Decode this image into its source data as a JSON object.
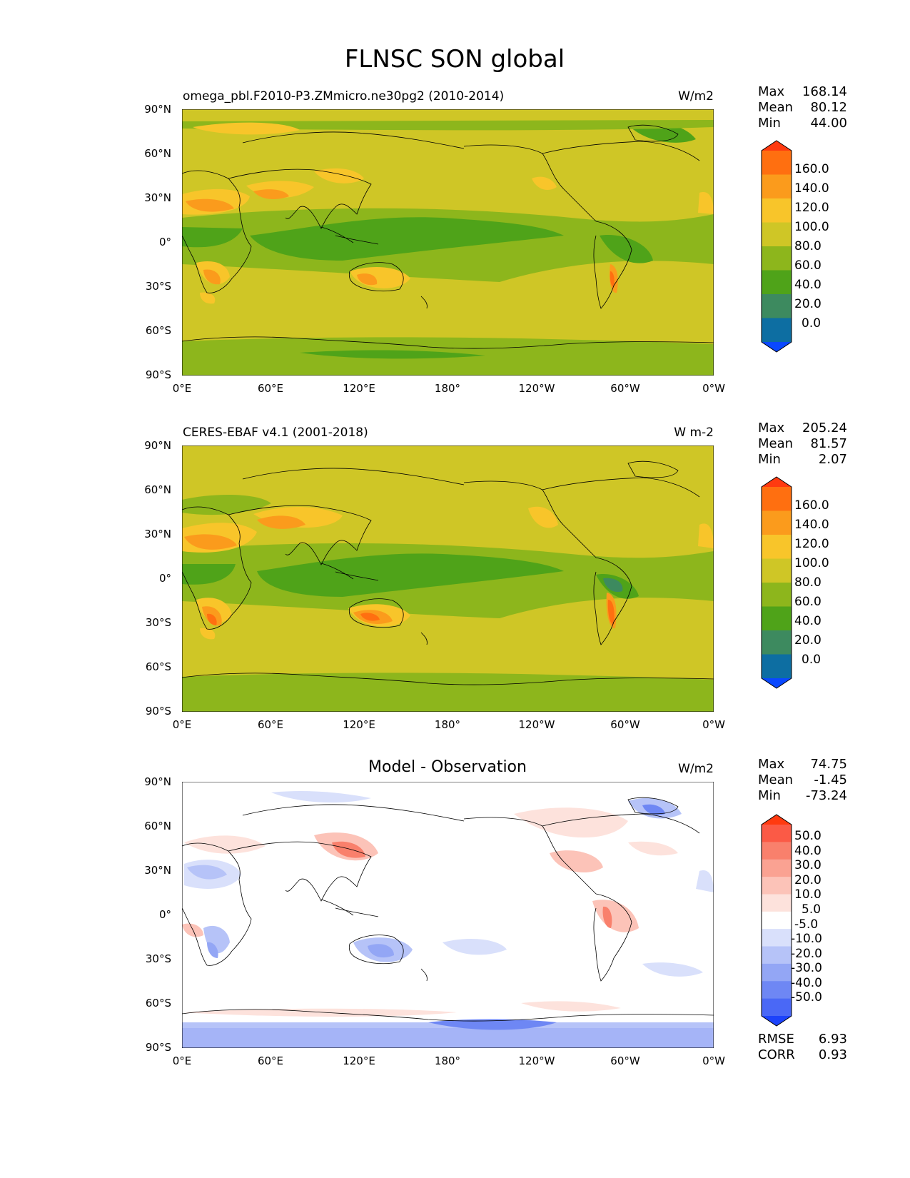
{
  "figure": {
    "title": "FLNSC SON global",
    "x_ticks": [
      "0°E",
      "60°E",
      "120°E",
      "180°",
      "120°W",
      "60°W",
      "0°W"
    ],
    "y_ticks": [
      "90°N",
      "60°N",
      "30°N",
      "0°",
      "30°S",
      "60°S",
      "90°S"
    ]
  },
  "panels": [
    {
      "left_title": "omega_pbl.F2010-P3.ZMmicro.ne30pg2 (2010-2014)",
      "center_title": "",
      "units": "W/m2",
      "stats": [
        {
          "label": "Max",
          "value": "168.14"
        },
        {
          "label": "Mean",
          "value": "80.12"
        },
        {
          "label": "Min",
          "value": "44.00"
        }
      ],
      "colorbar": {
        "labels": [
          "160.0",
          "140.0",
          "120.0",
          "100.0",
          "80.0",
          "60.0",
          "40.0",
          "20.0",
          "0.0"
        ],
        "colors": [
          "#ff3a10",
          "#ff6f10",
          "#fb9b1c",
          "#f8c52a",
          "#cfc626",
          "#8db61c",
          "#4fa319",
          "#3d8a5f",
          "#0d6ea2",
          "#0a48ff"
        ]
      }
    },
    {
      "left_title": "CERES-EBAF v4.1 (2001-2018)",
      "center_title": "",
      "units": "W m-2",
      "stats": [
        {
          "label": "Max",
          "value": "205.24"
        },
        {
          "label": "Mean",
          "value": "81.57"
        },
        {
          "label": "Min",
          "value": "2.07"
        }
      ],
      "colorbar": {
        "labels": [
          "160.0",
          "140.0",
          "120.0",
          "100.0",
          "80.0",
          "60.0",
          "40.0",
          "20.0",
          "0.0"
        ],
        "colors": [
          "#ff3a10",
          "#ff6f10",
          "#fb9b1c",
          "#f8c52a",
          "#cfc626",
          "#8db61c",
          "#4fa319",
          "#3d8a5f",
          "#0d6ea2",
          "#0a48ff"
        ]
      }
    },
    {
      "left_title": "",
      "center_title": "Model - Observation",
      "units": "W/m2",
      "stats": [
        {
          "label": "Max",
          "value": "74.75"
        },
        {
          "label": "Mean",
          "value": "-1.45"
        },
        {
          "label": "Min",
          "value": "-73.24"
        }
      ],
      "colorbar": {
        "labels": [
          "50.0",
          "40.0",
          "30.0",
          "20.0",
          "10.0",
          "5.0",
          "-5.0",
          "-10.0",
          "-20.0",
          "-30.0",
          "-40.0",
          "-50.0"
        ],
        "colors": [
          "#ff3a10",
          "#fb5a46",
          "#f9806c",
          "#faa292",
          "#fcc3b8",
          "#fde2dc",
          "#ffffff",
          "#d9e0fb",
          "#b6c3f8",
          "#93a6f5",
          "#6e87f4",
          "#4a68f6",
          "#1c43fb"
        ]
      },
      "metrics": [
        {
          "label": "RMSE",
          "value": "6.93"
        },
        {
          "label": "CORR",
          "value": "0.93"
        }
      ]
    }
  ],
  "fields": {
    "field_colors": {
      "ocean_high": "#cfc626",
      "tropics": "#8db61c",
      "warm_pool": "#4fa319",
      "deserts": "#f8c52a",
      "hot_spots": "#fb9b1c",
      "andes": "#ff6f10",
      "antarctic": "#8db61c",
      "diff_pos": "#fcc3b8",
      "diff_pos_strong": "#f9806c",
      "diff_neg": "#b6c3f8",
      "diff_neg_strong": "#6e87f4"
    }
  }
}
